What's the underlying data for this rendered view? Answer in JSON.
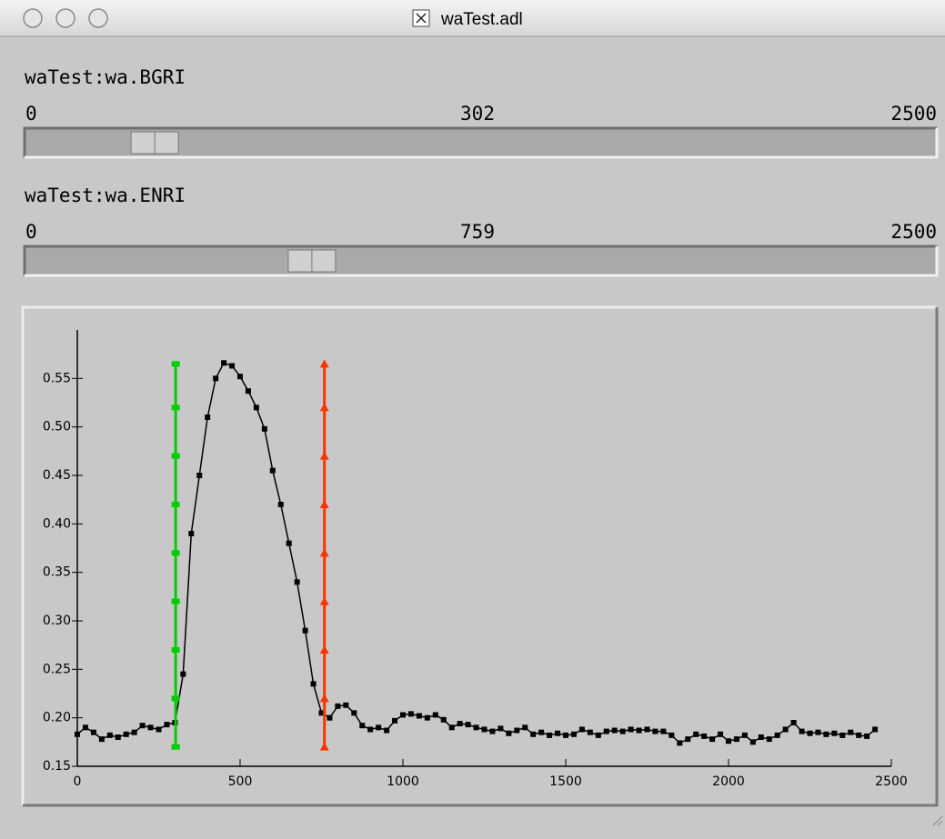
{
  "window": {
    "title": "waTest.adl",
    "sliders": [
      {
        "label": "waTest:wa.BGRI",
        "min": 0,
        "max": 2500,
        "value": 302
      },
      {
        "label": "waTest:wa.ENRI",
        "min": 0,
        "max": 2500,
        "value": 759
      }
    ]
  },
  "chart_data": {
    "type": "line",
    "xlim": [
      0,
      2500
    ],
    "ylim": [
      0.15,
      0.6
    ],
    "xticks": [
      0,
      500,
      1000,
      1500,
      2000,
      2500
    ],
    "yticks": [
      {
        "value": 0.15,
        "label": "0.15"
      },
      {
        "value": 0.2,
        "label": "0.20"
      },
      {
        "value": 0.25,
        "label": "0.25"
      },
      {
        "value": 0.3,
        "label": "0.30"
      },
      {
        "value": 0.35,
        "label": "0.35"
      },
      {
        "value": 0.4,
        "label": "0.40"
      },
      {
        "value": 0.45,
        "label": "0.45"
      },
      {
        "value": 0.5,
        "label": "0.50"
      },
      {
        "value": 0.55,
        "label": "0.55"
      }
    ],
    "series": [
      {
        "color": "#000000",
        "marker": "square",
        "x": [
          0,
          25,
          50,
          75,
          100,
          125,
          150,
          175,
          200,
          225,
          250,
          275,
          300,
          325,
          350,
          375,
          400,
          425,
          450,
          475,
          500,
          525,
          550,
          575,
          600,
          625,
          650,
          675,
          700,
          725,
          750,
          775,
          800,
          825,
          850,
          875,
          900,
          925,
          950,
          975,
          1000,
          1025,
          1050,
          1075,
          1100,
          1125,
          1150,
          1175,
          1200,
          1225,
          1250,
          1275,
          1300,
          1325,
          1350,
          1375,
          1400,
          1425,
          1450,
          1475,
          1500,
          1525,
          1550,
          1575,
          1600,
          1625,
          1650,
          1675,
          1700,
          1725,
          1750,
          1775,
          1800,
          1825,
          1850,
          1875,
          1900,
          1925,
          1950,
          1975,
          2000,
          2025,
          2050,
          2075,
          2100,
          2125,
          2150,
          2175,
          2200,
          2225,
          2250,
          2275,
          2300,
          2325,
          2350,
          2375,
          2400,
          2425,
          2450
        ],
        "values": [
          0.183,
          0.19,
          0.185,
          0.178,
          0.182,
          0.18,
          0.183,
          0.185,
          0.192,
          0.19,
          0.188,
          0.193,
          0.195,
          0.245,
          0.39,
          0.45,
          0.51,
          0.55,
          0.566,
          0.563,
          0.552,
          0.537,
          0.52,
          0.498,
          0.455,
          0.42,
          0.38,
          0.34,
          0.29,
          0.235,
          0.205,
          0.2,
          0.212,
          0.213,
          0.205,
          0.192,
          0.188,
          0.19,
          0.187,
          0.197,
          0.203,
          0.204,
          0.202,
          0.2,
          0.203,
          0.198,
          0.19,
          0.194,
          0.193,
          0.19,
          0.188,
          0.186,
          0.189,
          0.184,
          0.187,
          0.19,
          0.183,
          0.185,
          0.182,
          0.184,
          0.182,
          0.183,
          0.188,
          0.185,
          0.182,
          0.186,
          0.187,
          0.186,
          0.188,
          0.187,
          0.188,
          0.186,
          0.186,
          0.182,
          0.174,
          0.178,
          0.183,
          0.181,
          0.178,
          0.183,
          0.176,
          0.178,
          0.182,
          0.175,
          0.18,
          0.178,
          0.182,
          0.188,
          0.195,
          0.186,
          0.184,
          0.185,
          0.183,
          0.184,
          0.182,
          0.185,
          0.182,
          0.181,
          0.188
        ]
      },
      {
        "color": "#00cc00",
        "marker": "square",
        "x": [
          302,
          302,
          302,
          302,
          302,
          302,
          302,
          302,
          302
        ],
        "values": [
          0.17,
          0.22,
          0.27,
          0.32,
          0.37,
          0.42,
          0.47,
          0.52,
          0.565
        ]
      },
      {
        "color": "#ff3300",
        "marker": "triangle",
        "x": [
          759,
          759,
          759,
          759,
          759,
          759,
          759,
          759,
          759
        ],
        "values": [
          0.17,
          0.22,
          0.27,
          0.32,
          0.37,
          0.42,
          0.47,
          0.52,
          0.565
        ]
      }
    ]
  }
}
